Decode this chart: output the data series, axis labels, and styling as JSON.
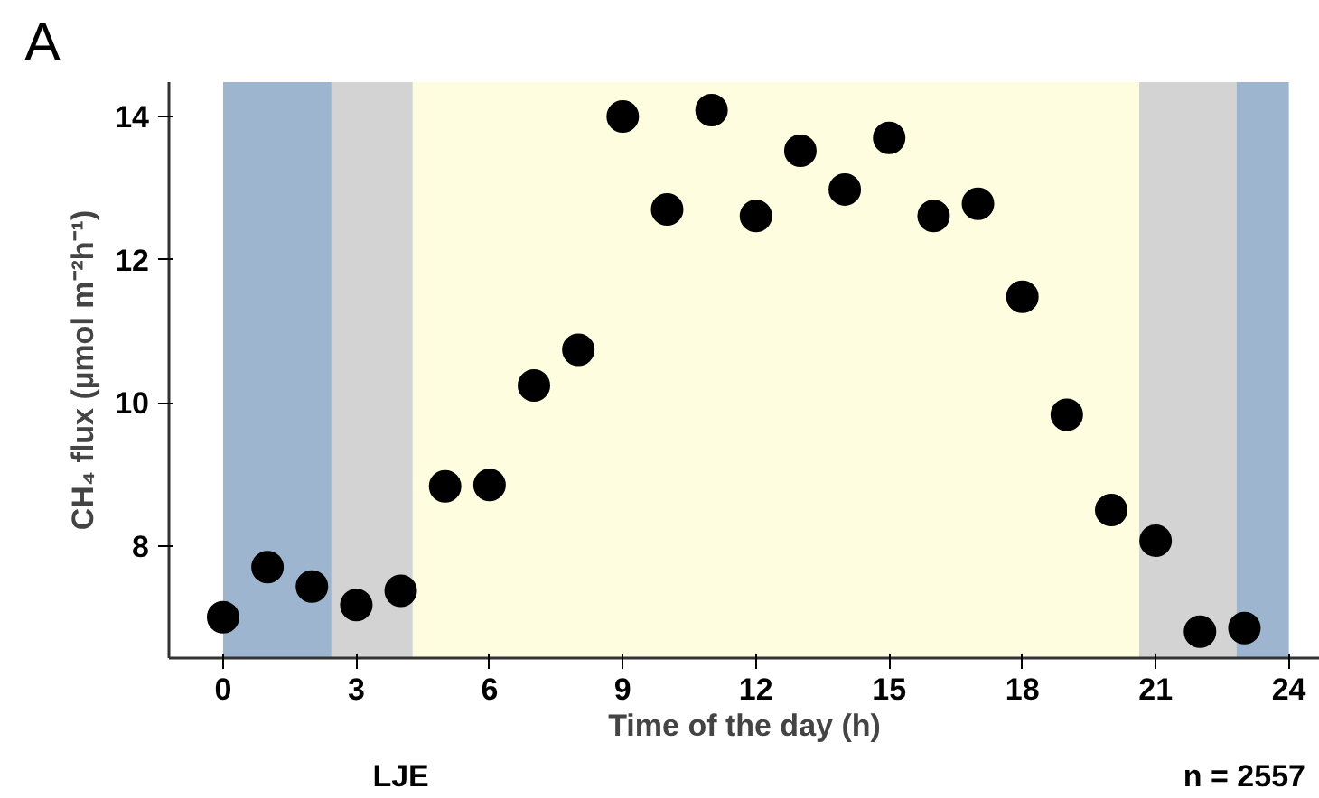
{
  "chart_data": {
    "type": "scatter",
    "xlabel": "Time of the day (h)",
    "ylabel": "CH₄ flux (µmol m⁻²h⁻¹)",
    "x": [
      0,
      1,
      2,
      3,
      4,
      5,
      6,
      7,
      8,
      9,
      10,
      11,
      12,
      13,
      14,
      15,
      16,
      17,
      18,
      19,
      20,
      21,
      22,
      23
    ],
    "series": [
      {
        "color": "#000000",
        "values": [
          7.0,
          7.7,
          7.43,
          7.17,
          7.37,
          8.83,
          8.85,
          10.24,
          10.74,
          14.0,
          12.7,
          14.09,
          12.61,
          13.52,
          12.98,
          13.7,
          12.61,
          12.78,
          11.48,
          9.83,
          8.5,
          8.07,
          6.8,
          6.85
        ]
      }
    ],
    "marker": "circle",
    "xlim": [
      -1.22,
      24.7
    ],
    "ylim": [
      6.43,
      14.48
    ],
    "xticks": [
      0,
      3,
      6,
      9,
      12,
      15,
      18,
      21,
      24
    ],
    "yticks": [
      8,
      10,
      12,
      14
    ],
    "grid": false,
    "bands": [
      {
        "axis": "x",
        "from": 0,
        "to": 2.44,
        "color": "#9db5cf"
      },
      {
        "axis": "x",
        "from": 2.44,
        "to": 4.27,
        "color": "#d3d3d3"
      },
      {
        "axis": "x",
        "from": 4.27,
        "to": 20.63,
        "color": "#fffde0"
      },
      {
        "axis": "x",
        "from": 20.63,
        "to": 22.82,
        "color": "#d3d3d3"
      },
      {
        "axis": "x",
        "from": 22.82,
        "to": 24,
        "color": "#9db5cf"
      }
    ],
    "annotations": [
      "A",
      "LJE",
      "n = 2557"
    ]
  }
}
